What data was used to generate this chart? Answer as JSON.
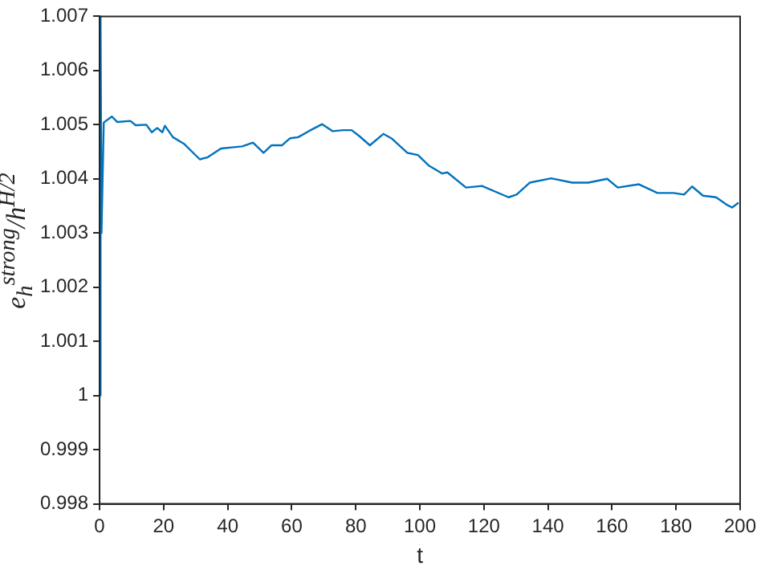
{
  "chart_data": {
    "type": "line",
    "xlabel": "t",
    "ylabel": "e$_{h}$$^{strong}$/h$^{H/2}$",
    "x": [
      0,
      0.3,
      0.6,
      1.3,
      3.8,
      5.5,
      9.6,
      11.3,
      14.6,
      16.3,
      18,
      19.6,
      20.4,
      22.9,
      26.3,
      31.3,
      33.8,
      37.9,
      41.2,
      44.5,
      47.9,
      51.2,
      53.7,
      57,
      59.5,
      62,
      65.3,
      69.5,
      72.8,
      76.1,
      78.7,
      81.1,
      84.4,
      88.6,
      91.1,
      96.1,
      99.4,
      102.7,
      106.9,
      108.6,
      114.4,
      119.4,
      127.7,
      130.2,
      134.3,
      141,
      147.6,
      152.6,
      158.5,
      161.8,
      168.4,
      174.2,
      179.2,
      182.5,
      185,
      188.4,
      192.5,
      195.9,
      197.5,
      199.5
    ],
    "series": [
      {
        "color": "#0072bd",
        "values": [
          1.0,
          1.007,
          1.003,
          1.00504,
          1.00515,
          1.00505,
          1.00507,
          1.00499,
          1.005,
          1.00486,
          1.00494,
          1.00486,
          1.00498,
          1.00477,
          1.00465,
          1.00436,
          1.0044,
          1.00456,
          1.00458,
          1.0046,
          1.00467,
          1.00448,
          1.00462,
          1.00462,
          1.00475,
          1.00477,
          1.00488,
          1.00501,
          1.00488,
          1.0049,
          1.0049,
          1.00479,
          1.00462,
          1.00483,
          1.00475,
          1.00448,
          1.00444,
          1.00425,
          1.0041,
          1.00412,
          1.00384,
          1.00387,
          1.00366,
          1.00371,
          1.00393,
          1.00401,
          1.00393,
          1.00393,
          1.004,
          1.00384,
          1.0039,
          1.00374,
          1.00374,
          1.00371,
          1.00386,
          1.00369,
          1.00366,
          1.00352,
          1.00347,
          1.00356
        ]
      }
    ],
    "xlim": [
      0,
      200
    ],
    "xticks": [
      0,
      20,
      40,
      60,
      80,
      100,
      120,
      140,
      160,
      180,
      200
    ],
    "ylim": [
      0.998,
      1.007
    ],
    "yticks": [
      0.998,
      0.999,
      1,
      1.001,
      1.002,
      1.003,
      1.004,
      1.005,
      1.006,
      1.007
    ],
    "grid": false,
    "legend": false,
    "marker": "none",
    "line_style": "solid"
  }
}
